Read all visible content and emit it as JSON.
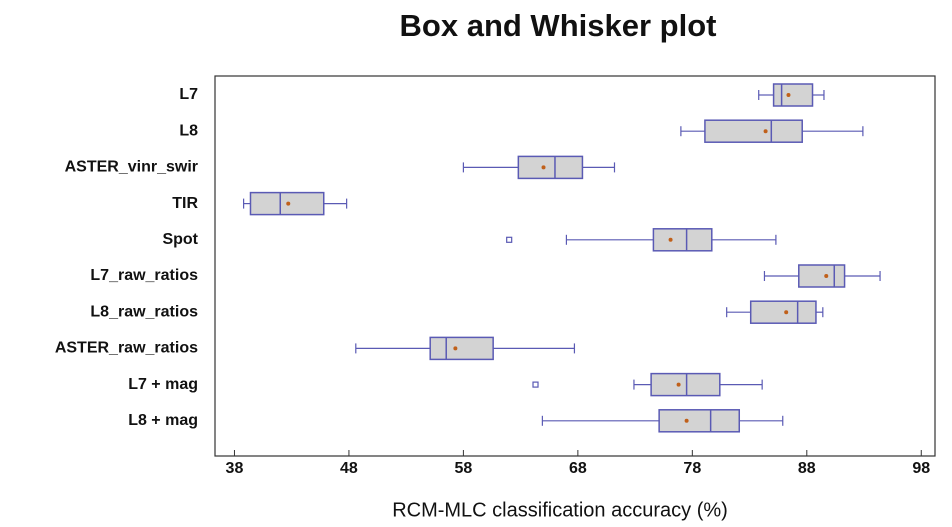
{
  "chart_data": {
    "type": "boxplot",
    "title": "Box and Whisker plot",
    "x_label": "RCM-MLC classification accuracy (%)",
    "orientation": "horizontal",
    "box_color": "#d3d3d3",
    "edge_color": "#5a5ab4",
    "mean_color": "#c0601a",
    "xlim": [
      36.3,
      99.2
    ],
    "xticks": [
      38,
      48,
      58,
      68,
      78,
      88,
      98
    ],
    "series": [
      {
        "name": "L7",
        "min": 83.8,
        "q1": 85.1,
        "median": 85.8,
        "q3": 88.5,
        "max": 89.5,
        "mean": 86.4,
        "outliers": []
      },
      {
        "name": "L8",
        "min": 77.0,
        "q1": 79.1,
        "median": 84.9,
        "q3": 87.6,
        "max": 92.9,
        "mean": 84.4,
        "outliers": []
      },
      {
        "name": "ASTER_vinr_swir",
        "min": 58.0,
        "q1": 62.8,
        "median": 66.0,
        "q3": 68.4,
        "max": 71.2,
        "mean": 65.0,
        "outliers": []
      },
      {
        "name": "TIR",
        "min": 38.8,
        "q1": 39.4,
        "median": 42.0,
        "q3": 45.8,
        "max": 47.8,
        "mean": 42.7,
        "outliers": []
      },
      {
        "name": "Spot",
        "min": 67.0,
        "q1": 74.6,
        "median": 77.5,
        "q3": 79.7,
        "max": 85.3,
        "mean": 76.1,
        "outliers": [
          62.0
        ]
      },
      {
        "name": "L7_raw_ratios",
        "min": 84.3,
        "q1": 87.3,
        "median": 90.4,
        "q3": 91.3,
        "max": 94.4,
        "mean": 89.7,
        "outliers": []
      },
      {
        "name": "L8_raw_ratios",
        "min": 81.0,
        "q1": 83.1,
        "median": 87.2,
        "q3": 88.8,
        "max": 89.4,
        "mean": 86.2,
        "outliers": []
      },
      {
        "name": "ASTER_raw_ratios",
        "min": 48.6,
        "q1": 55.1,
        "median": 56.5,
        "q3": 60.6,
        "max": 67.7,
        "mean": 57.3,
        "outliers": []
      },
      {
        "name": "L7 + mag",
        "min": 72.9,
        "q1": 74.4,
        "median": 77.5,
        "q3": 80.4,
        "max": 84.1,
        "mean": 76.8,
        "outliers": [
          64.3
        ]
      },
      {
        "name": "L8 + mag",
        "min": 64.9,
        "q1": 75.1,
        "median": 79.6,
        "q3": 82.1,
        "max": 85.9,
        "mean": 77.5,
        "outliers": []
      }
    ]
  }
}
